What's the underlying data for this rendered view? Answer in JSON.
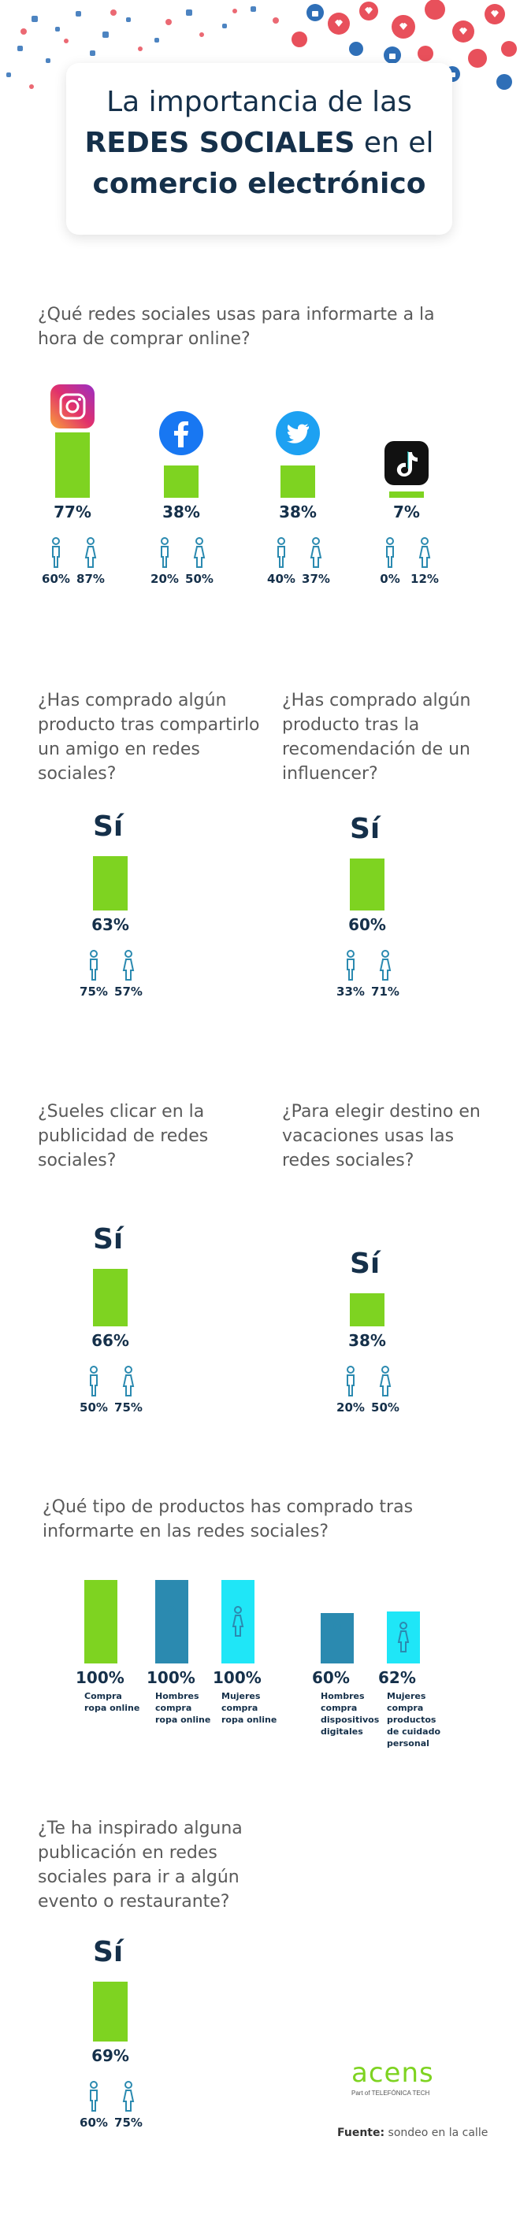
{
  "title": {
    "line1": "La importancia de las",
    "line2_bold": "REDES SOCIALES",
    "line2_rest": " en el",
    "line3": "comercio electrónico"
  },
  "colors": {
    "green": "#7ed321",
    "blue": "#2b8ab0",
    "cyan": "#1fe6f7",
    "navy": "#15304a",
    "heart_red": "#e8505b",
    "like_blue": "#2f6fb7"
  },
  "chart_data": [
    {
      "type": "bar",
      "question": "¿Qué redes sociales usas para informarte a la hora de comprar online?",
      "categories": [
        "Instagram",
        "Facebook",
        "Twitter",
        "TikTok"
      ],
      "icons": [
        "instagram-icon",
        "facebook-icon",
        "twitter-icon",
        "tiktok-icon"
      ],
      "values": [
        77,
        38,
        38,
        7
      ],
      "labels": [
        "77%",
        "38%",
        "38%",
        "7%"
      ],
      "men": [
        "60%",
        "20%",
        "40%",
        "0%"
      ],
      "women": [
        "87%",
        "50%",
        "37%",
        "12%"
      ]
    },
    {
      "type": "bar",
      "question": "¿Has comprado algún producto tras compartirlo un amigo en redes sociales?",
      "answer": "Sí",
      "value": 63,
      "label": "63%",
      "men": "75%",
      "women": "57%"
    },
    {
      "type": "bar",
      "question": "¿Has comprado algún producto tras la recomendación de un influencer?",
      "answer": "Sí",
      "value": 60,
      "label": "60%",
      "men": "33%",
      "women": "71%"
    },
    {
      "type": "bar",
      "question": "¿Sueles clicar en la publicidad de redes sociales?",
      "answer": "Sí",
      "value": 66,
      "label": "66%",
      "men": "50%",
      "women": "75%"
    },
    {
      "type": "bar",
      "question": "¿Para elegir destino en vacaciones usas las redes sociales?",
      "answer": "Sí",
      "value": 38,
      "label": "38%",
      "men": "20%",
      "women": "50%"
    },
    {
      "type": "bar",
      "question": "¿Qué tipo de productos has comprado tras informarte en las redes sociales?",
      "categories": [
        "Compra ropa online",
        "Hombres compra ropa online",
        "Mujeres compra ropa online",
        "Hombres compra dispositivos digitales",
        "Mujeres compra productos de cuidado personal"
      ],
      "values": [
        100,
        100,
        100,
        60,
        62
      ],
      "labels": [
        "100%",
        "100%",
        "100%",
        "60%",
        "62%"
      ],
      "bar_colors": [
        "green",
        "blue",
        "cyan",
        "blue",
        "cyan"
      ]
    },
    {
      "type": "bar",
      "question": "¿Te ha inspirado alguna publicación en redes sociales para ir a algún evento o restaurante?",
      "answer": "Sí",
      "value": 69,
      "label": "69%",
      "men": "60%",
      "women": "75%"
    }
  ],
  "q6_labels": {
    "l0": [
      "Compra",
      "ropa online"
    ],
    "l1": [
      "Hombres",
      "compra",
      "ropa online"
    ],
    "l2": [
      "Mujeres",
      "compra",
      "ropa online"
    ],
    "l3": [
      "Hombres",
      "compra",
      "dispositivos",
      "digitales"
    ],
    "l4": [
      "Mujeres",
      "compra",
      "productos",
      "de cuidado",
      "personal"
    ]
  },
  "footer": {
    "logo": "acens",
    "logo_sub": "Part of TELEFÓNICA TECH",
    "source_label": "Fuente:",
    "source_text": " sondeo en la calle"
  }
}
